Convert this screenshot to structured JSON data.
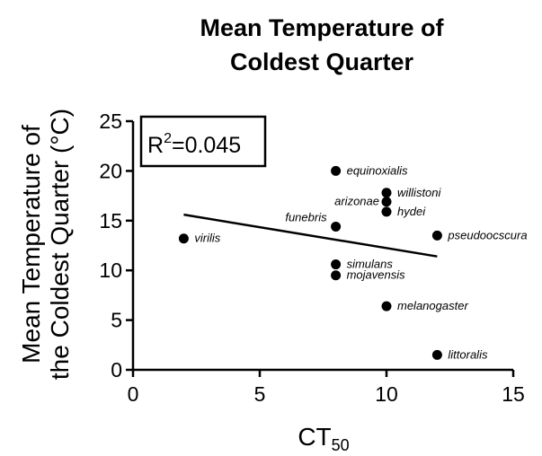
{
  "chart_data": {
    "type": "scatter",
    "title": [
      "Mean Temperature of",
      "Coldest Quarter"
    ],
    "xlabel": [
      "CT",
      "50"
    ],
    "ylabel": [
      "Mean Temperature of",
      "the Coldest Quarter (°C)"
    ],
    "annotation": [
      "R",
      "2",
      "=0.045"
    ],
    "x": [
      2,
      8,
      8,
      8,
      8,
      10,
      10,
      10,
      10,
      12,
      12
    ],
    "values": [
      13.2,
      14.4,
      20,
      10.6,
      9.5,
      17.8,
      16.9,
      15.9,
      6.4,
      13.5,
      1.5
    ],
    "labels": [
      "virilis",
      "funebris",
      "equinoxialis",
      "simulans",
      "mojavensis",
      "willistoni",
      "arizonae",
      "hydei",
      "melanogaster",
      "pseudoocscura",
      "littoralis"
    ],
    "color": "#000000",
    "fit": {
      "x": [
        2,
        12
      ],
      "values": [
        15.6,
        11.4
      ]
    },
    "xlim": [
      0,
      15
    ],
    "xticks": [
      0,
      5,
      10,
      15
    ],
    "ylim": [
      0,
      25
    ],
    "yticks": [
      0,
      5,
      10,
      15,
      20,
      25
    ],
    "grid": false
  }
}
